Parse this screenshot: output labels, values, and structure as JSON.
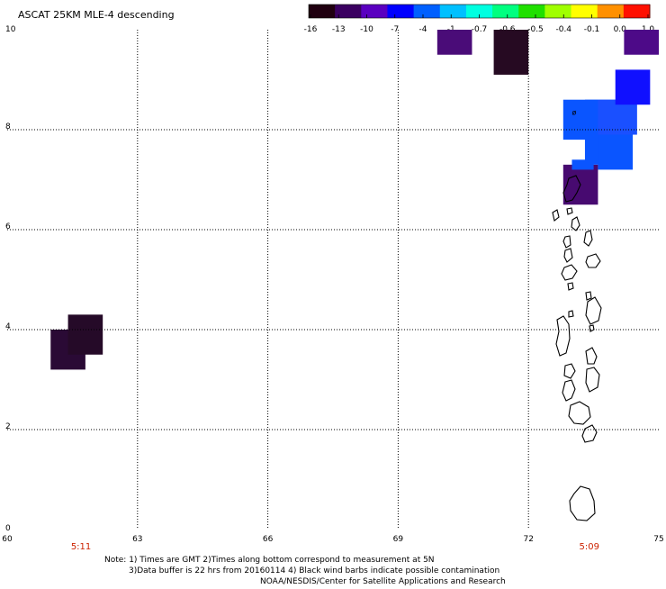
{
  "title": "ASCAT 25KM MLE-4 descending",
  "chart_data": {
    "type": "heatmap",
    "title": "ASCAT 25KM MLE-4 descending",
    "xlabel": "",
    "ylabel": "",
    "xlim": [
      60,
      75
    ],
    "ylim": [
      0,
      10
    ],
    "x_ticks": [
      "60",
      "63",
      "66",
      "69",
      "72",
      "75"
    ],
    "y_ticks": [
      "0",
      "2",
      "4",
      "6",
      "8",
      "10"
    ],
    "grid": true,
    "colorbar": {
      "labels": [
        "-16",
        "-13",
        "-10",
        "-7",
        "-4",
        "-1",
        "-0.7",
        "-0.6",
        "-0.5",
        "-0.4",
        "-0.1",
        "0.0",
        "1.0"
      ],
      "colors": [
        "#200010",
        "#3a0060",
        "#5a00c0",
        "#0000ff",
        "#0060ff",
        "#00c0ff",
        "#00ffe0",
        "#00ff80",
        "#20e000",
        "#a0ff00",
        "#ffff00",
        "#ff9000",
        "#ff1000"
      ]
    },
    "cells": [
      {
        "lon": 61.0,
        "lat": 3.2,
        "lon2": 61.8,
        "lat2": 4.0,
        "value": -14,
        "color": "#2a0a35"
      },
      {
        "lon": 61.4,
        "lat": 3.5,
        "lon2": 62.2,
        "lat2": 4.3,
        "value": -15,
        "color": "#250a28"
      },
      {
        "lon": 71.2,
        "lat": 9.1,
        "lon2": 72.0,
        "lat2": 10.0,
        "value": -15,
        "color": "#260a22"
      },
      {
        "lon": 69.9,
        "lat": 9.5,
        "lon2": 70.7,
        "lat2": 10.0,
        "value": -13,
        "color": "#4a0c78"
      },
      {
        "lon": 74.2,
        "lat": 9.5,
        "lon2": 75.0,
        "lat2": 10.0,
        "value": -12,
        "color": "#4d0a88"
      },
      {
        "lon": 72.8,
        "lat": 6.5,
        "lon2": 73.6,
        "lat2": 7.3,
        "value": -13,
        "color": "#470a70"
      },
      {
        "lon": 72.8,
        "lat": 7.8,
        "lon2": 73.6,
        "lat2": 8.6,
        "value": -6,
        "color": "#0a55ff"
      },
      {
        "lon": 73.3,
        "lat": 7.3,
        "lon2": 74.1,
        "lat2": 8.1,
        "value": -6,
        "color": "#0a55ff"
      },
      {
        "lon": 73.3,
        "lat": 7.8,
        "lon2": 74.1,
        "lat2": 8.6,
        "value": -6,
        "color": "#0a55ff"
      },
      {
        "lon": 73.6,
        "lat": 7.2,
        "lon2": 74.4,
        "lat2": 8.0,
        "value": -6,
        "color": "#0a55ff"
      },
      {
        "lon": 73.6,
        "lat": 7.9,
        "lon2": 74.5,
        "lat2": 8.6,
        "value": -6,
        "color": "#1a50ff"
      },
      {
        "lon": 73.0,
        "lat": 7.2,
        "lon2": 73.5,
        "lat2": 7.4,
        "value": -6,
        "color": "#0a55ff"
      },
      {
        "lon": 74.0,
        "lat": 8.5,
        "lon2": 74.8,
        "lat2": 9.2,
        "value": -9,
        "color": "#1010ff"
      }
    ],
    "bottom_time_labels": [
      {
        "lon": 61.7,
        "text": "5:11"
      },
      {
        "lon": 73.4,
        "text": "5:09"
      }
    ],
    "barb_mark": {
      "lon": 73.0,
      "lat": 8.3,
      "text": "ø"
    }
  },
  "notes": [
    "Note: 1) Times are GMT 2)Times along bottom correspond to measurement at 5N",
    "3)Data buffer is 22 hrs from 20160114 4) Black wind barbs indicate possible contamination",
    "NOAA/NESDIS/Center for Satellite Applications and Research"
  ],
  "colors": {
    "time_label": "#cc2200",
    "coast": "#000000",
    "grid": "#000000"
  }
}
